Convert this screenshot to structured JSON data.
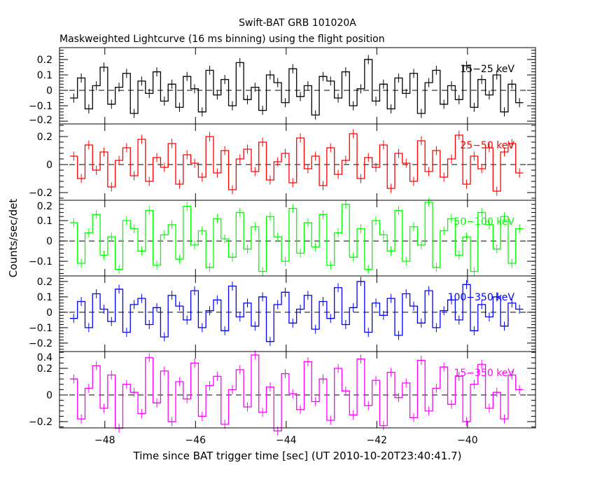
{
  "chart_data": {
    "type": "line",
    "title": "Swift-BAT GRB 101020A",
    "subtitle": "Maskweighted Lightcurve (16 ms binning) using the flight position",
    "xlabel": "Time since BAT trigger time [sec] (UT 2010-10-20T23:40:41.7)",
    "ylabel": "Counts/sec/det",
    "xlim": [
      -49.0,
      -38.5
    ],
    "xticks": [
      -48,
      -46,
      -44,
      -42,
      -40
    ],
    "xtick_labels": [
      "−48",
      "−46",
      "−44",
      "−42",
      "−40"
    ],
    "x_start": -48.77,
    "x_end": -38.77,
    "panels": [
      {
        "name": "15-25 keV",
        "label": "15−25 keV",
        "color": "#000000",
        "ylim": [
          -0.218,
          0.277
        ],
        "yticks": [
          -0.2,
          -0.1,
          0,
          0.1,
          0.2
        ],
        "ytick_labels": [
          "−0.2",
          "−0.1",
          "0",
          "0.1",
          "0.2"
        ],
        "values": [
          -0.05,
          0.08,
          -0.12,
          0.03,
          0.15,
          -0.09,
          0.02,
          0.11,
          -0.15,
          0.06,
          -0.02,
          0.12,
          -0.07,
          0.04,
          -0.11,
          0.09,
          0.01,
          -0.14,
          0.13,
          -0.03,
          0.07,
          -0.1,
          0.18,
          -0.06,
          0.02,
          -0.13,
          0.1,
          0.05,
          -0.08,
          0.14,
          -0.04,
          0.03,
          -0.16,
          0.09,
          0.06,
          -0.05,
          0.12,
          -0.1,
          0.01,
          0.2,
          -0.07,
          0.04,
          -0.12,
          0.08,
          -0.02,
          0.11,
          -0.15,
          0.05,
          0.13,
          -0.09,
          0.03,
          -0.06,
          0.16,
          -0.11,
          0.07,
          -0.03,
          0.1,
          -0.14,
          0.04,
          -0.08
        ]
      },
      {
        "name": "25-50 keV",
        "label": "25−50 keV",
        "color": "#ff0000",
        "ylim": [
          -0.255,
          0.29
        ],
        "yticks": [
          -0.2,
          0,
          0.2
        ],
        "ytick_labels": [
          "−0.2",
          "0",
          "0.2"
        ],
        "values": [
          0.06,
          -0.1,
          0.14,
          -0.04,
          0.09,
          -0.16,
          0.03,
          0.12,
          -0.08,
          0.18,
          -0.12,
          0.05,
          -0.02,
          0.15,
          -0.14,
          0.07,
          0.01,
          -0.09,
          0.2,
          -0.06,
          0.1,
          -0.18,
          0.04,
          0.11,
          -0.05,
          0.16,
          -0.11,
          0.02,
          0.08,
          -0.13,
          0.19,
          -0.03,
          0.06,
          -0.15,
          0.12,
          -0.07,
          0.03,
          0.22,
          -0.1,
          0.05,
          -0.02,
          0.14,
          -0.17,
          0.08,
          0.01,
          -0.12,
          0.17,
          -0.05,
          0.1,
          -0.09,
          0.04,
          0.21,
          -0.14,
          0.06,
          -0.03,
          0.12,
          -0.19,
          0.09,
          0.15,
          -0.06
        ]
      },
      {
        "name": "50-100 keV",
        "label": "50−100 keV",
        "color": "#00ff00",
        "ylim": [
          -0.172,
          0.2
        ],
        "yticks": [
          -0.1,
          0,
          0.1,
          0.2
        ],
        "ytick_labels": [
          "−0.1",
          "0",
          "0.1",
          "0.2"
        ],
        "values": [
          0.09,
          -0.11,
          0.04,
          0.13,
          -0.07,
          0.02,
          -0.14,
          0.1,
          0.06,
          -0.05,
          0.15,
          -0.12,
          0.03,
          0.08,
          -0.09,
          0.17,
          -0.02,
          0.05,
          -0.13,
          0.11,
          0.01,
          -0.08,
          0.14,
          -0.04,
          0.07,
          -0.15,
          0.12,
          0.02,
          -0.1,
          0.16,
          -0.06,
          0.09,
          -0.03,
          0.13,
          -0.12,
          0.04,
          0.18,
          -0.08,
          0.06,
          -0.14,
          0.1,
          0.03,
          -0.05,
          0.15,
          -0.1,
          0.07,
          -0.02,
          0.19,
          -0.13,
          0.05,
          0.11,
          -0.07,
          0.02,
          -0.15,
          0.14,
          0.08,
          -0.04,
          0.12,
          -0.11,
          0.06
        ]
      },
      {
        "name": "100-350 keV",
        "label": "100−350 keV",
        "color": "#0000ff",
        "ylim": [
          -0.255,
          0.236
        ],
        "yticks": [
          -0.2,
          -0.1,
          0,
          0.1,
          0.2
        ],
        "ytick_labels": [
          "−0.2",
          "−0.1",
          "0",
          "0.1",
          "0.2"
        ],
        "values": [
          -0.04,
          0.07,
          -0.1,
          0.12,
          0.02,
          -0.06,
          0.15,
          -0.13,
          0.05,
          0.09,
          -0.08,
          0.03,
          -0.16,
          0.11,
          0.04,
          -0.05,
          0.14,
          -0.1,
          0.01,
          0.08,
          -0.12,
          0.17,
          -0.03,
          0.06,
          -0.09,
          0.1,
          -0.19,
          0.05,
          0.13,
          -0.07,
          0.02,
          0.11,
          -0.11,
          0.07,
          -0.04,
          0.16,
          -0.08,
          0.03,
          0.2,
          -0.13,
          0.06,
          -0.02,
          0.09,
          -0.15,
          0.12,
          0.04,
          -0.07,
          0.14,
          -0.1,
          0.01,
          0.08,
          -0.05,
          0.18,
          -0.12,
          0.05,
          -0.03,
          0.1,
          -0.09,
          0.06,
          0.02
        ]
      },
      {
        "name": "15-350 keV",
        "label": "15−350 keV",
        "color": "#ff00ff",
        "ylim": [
          -0.247,
          0.326
        ],
        "yticks": [
          -0.2,
          0,
          0.2,
          0.4
        ],
        "ytick_labels": [
          "−0.2",
          "0",
          "0.2",
          "0.4"
        ],
        "values": [
          0.12,
          -0.18,
          0.05,
          0.22,
          -0.1,
          0.15,
          -0.25,
          0.08,
          0.02,
          -0.14,
          0.28,
          -0.06,
          0.18,
          -0.2,
          0.1,
          -0.03,
          0.24,
          -0.16,
          0.07,
          0.14,
          -0.22,
          0.04,
          0.19,
          -0.09,
          0.3,
          -0.13,
          0.06,
          -0.27,
          0.16,
          0.01,
          -0.11,
          0.25,
          -0.05,
          0.12,
          -0.19,
          0.2,
          0.03,
          -0.15,
          0.27,
          -0.08,
          0.11,
          -0.23,
          0.17,
          -0.02,
          0.09,
          -0.17,
          0.26,
          -0.12,
          0.05,
          0.21,
          -0.07,
          0.14,
          -0.2,
          0.08,
          0.23,
          -0.1,
          0.02,
          -0.18,
          0.15,
          0.04
        ]
      }
    ]
  }
}
